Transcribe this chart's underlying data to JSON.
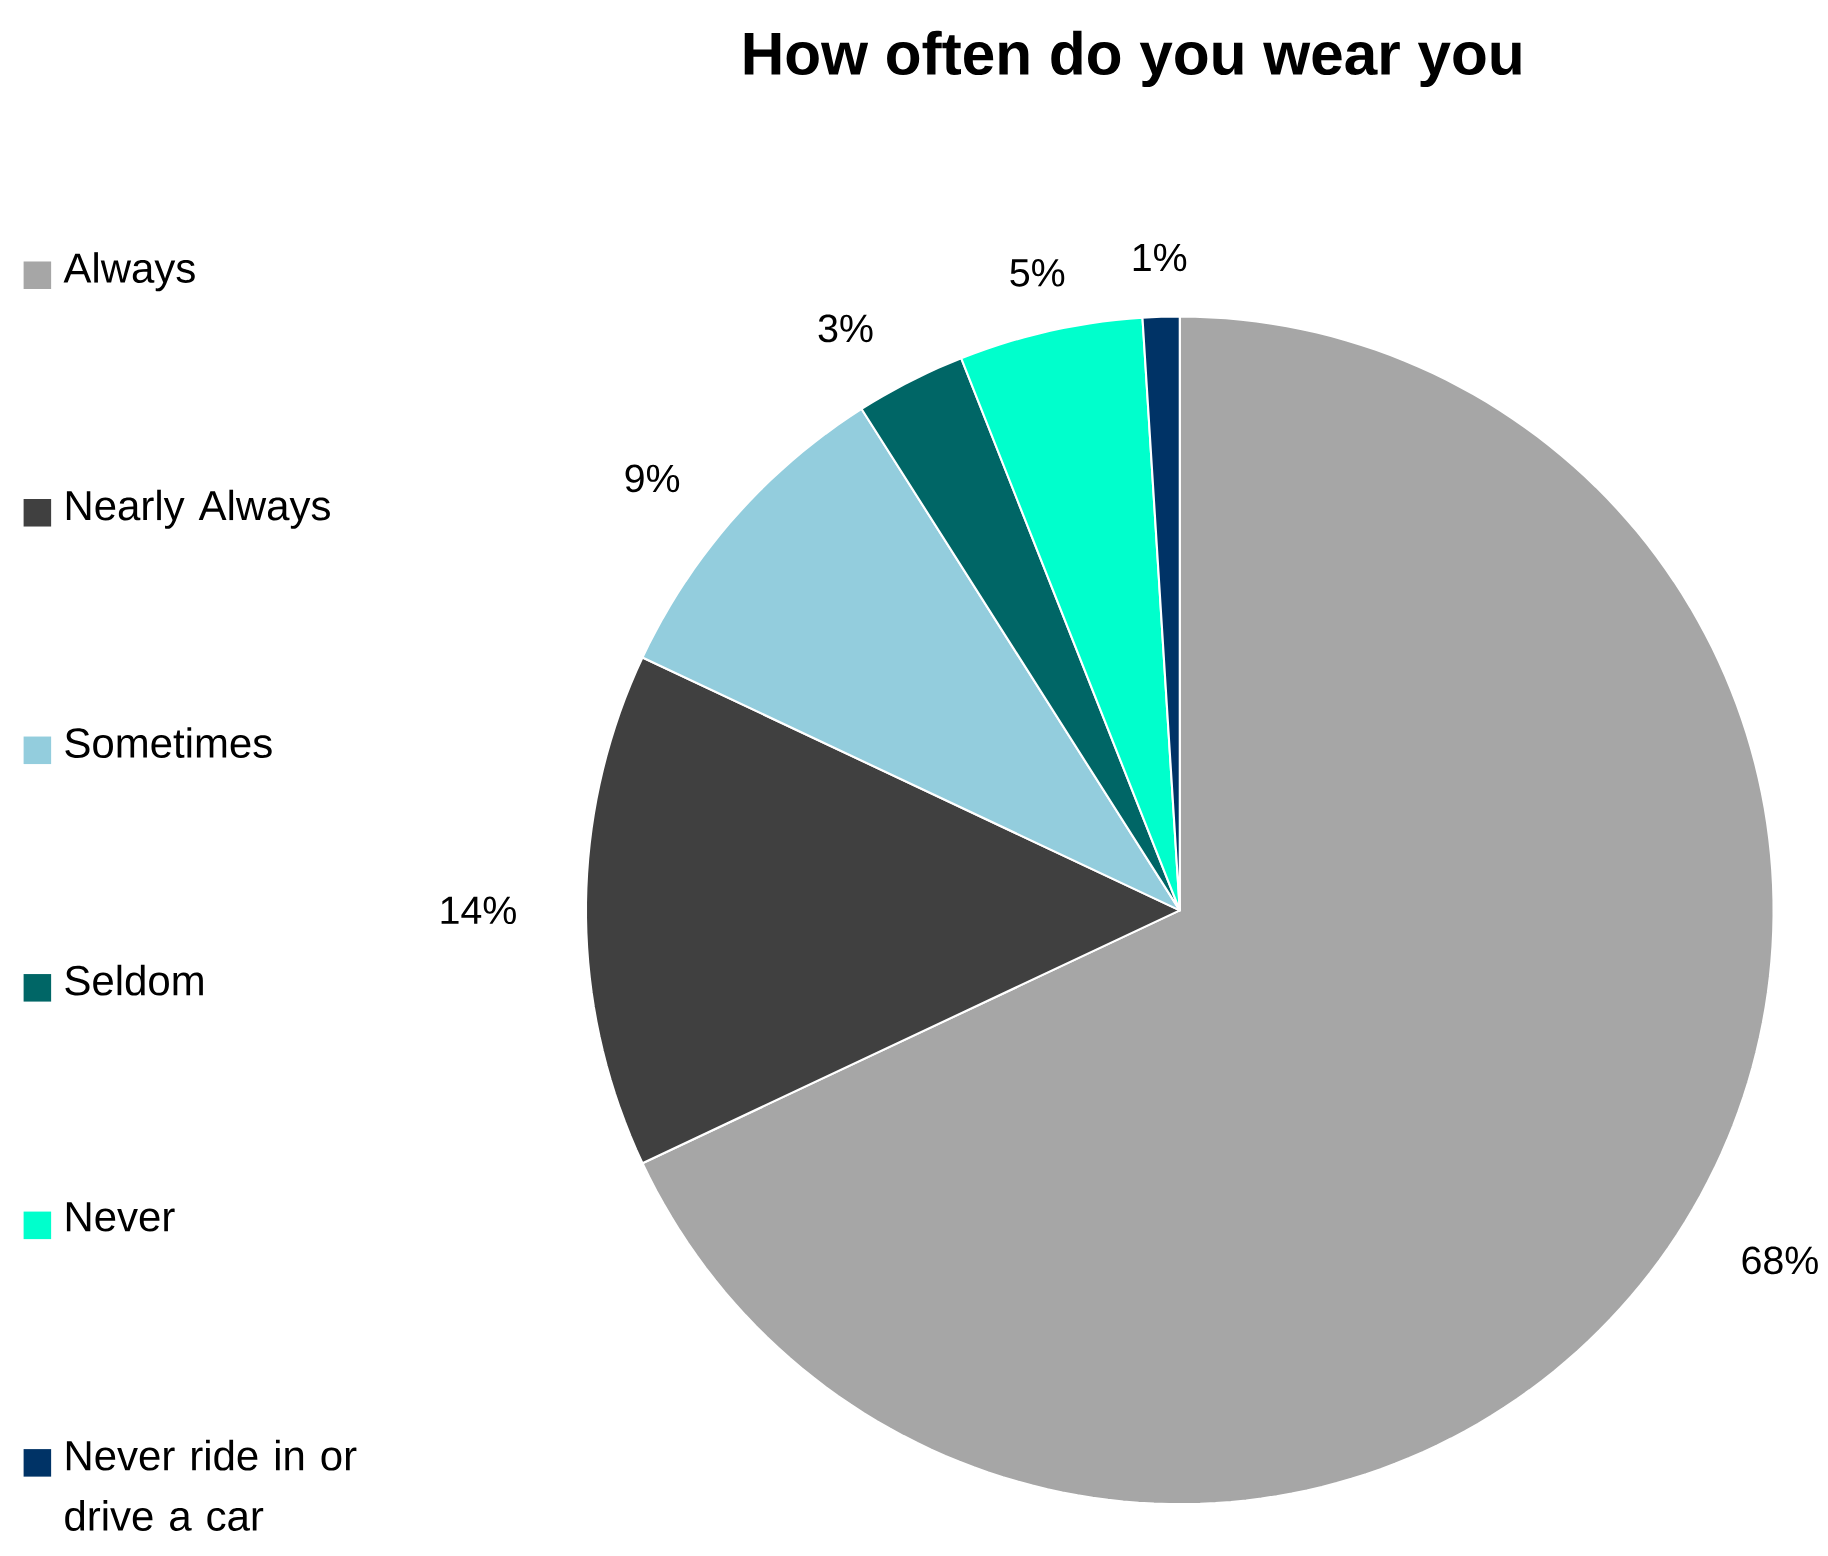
{
  "chart_data": {
    "type": "pie",
    "title": "How often do you wear you",
    "categories": [
      "Always",
      "Nearly Always",
      "Sometimes",
      "Seldom",
      "Never",
      "Never ride in or drive a car"
    ],
    "values": [
      68,
      14,
      9,
      3,
      5,
      1
    ],
    "value_labels": [
      "68%",
      "14%",
      "9%",
      "3%",
      "5%",
      "1%"
    ],
    "colors": [
      "#a6a6a6",
      "#404040",
      "#93cddd",
      "#006666",
      "#00ffcc",
      "#003366"
    ],
    "legend": "left"
  }
}
